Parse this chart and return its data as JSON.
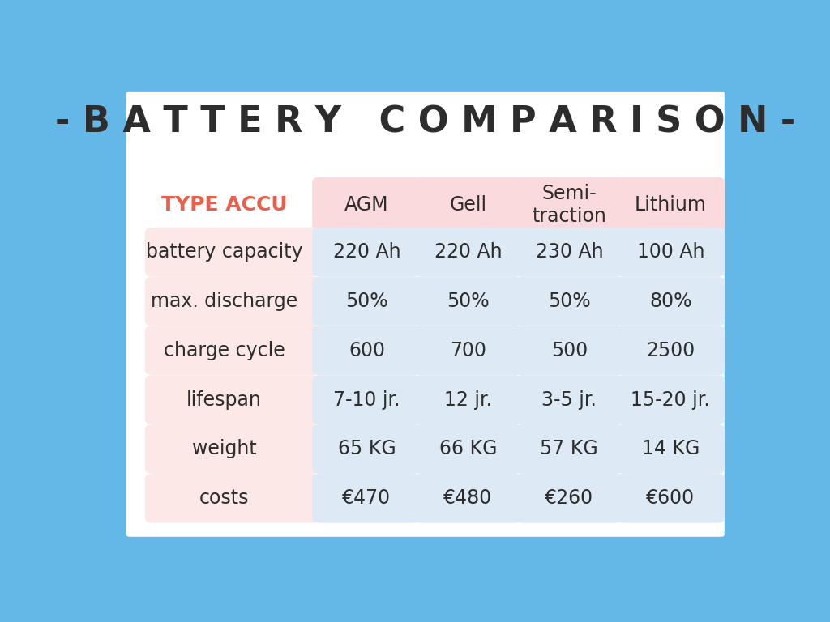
{
  "title": "- B A T T E R Y   C O M P A R I S O N -",
  "title_color": "#2d2d2d",
  "title_fontsize": 32,
  "background_outer": "#64b8e8",
  "background_inner": "#ffffff",
  "header_label": "TYPE ACCU",
  "header_label_color": "#e8604c",
  "header_label_fontsize": 18,
  "col_headers": [
    "AGM",
    "Gell",
    "Semi-\ntraction",
    "Lithium"
  ],
  "col_header_bg": "#fadadd",
  "col_header_text_color": "#2d2d2d",
  "col_header_fontsize": 17,
  "row_labels": [
    "battery capacity",
    "max. discharge",
    "charge cycle",
    "lifespan",
    "weight",
    "costs"
  ],
  "row_label_bg": "#fce8e6",
  "row_label_text_color": "#2d2d2d",
  "row_label_fontsize": 17,
  "data_cells": [
    [
      "220 Ah",
      "220 Ah",
      "230 Ah",
      "100 Ah"
    ],
    [
      "50%",
      "50%",
      "50%",
      "80%"
    ],
    [
      "600",
      "700",
      "500",
      "2500"
    ],
    [
      "7-10 jr.",
      "12 jr.",
      "3-5 jr.",
      "15-20 jr."
    ],
    [
      "65 KG",
      "66 KG",
      "57 KG",
      "14 KG"
    ],
    [
      "€470",
      "€480",
      "€260",
      "€600"
    ]
  ],
  "data_cell_bg": "#ddeaf5",
  "data_cell_text_color": "#2d2d2d",
  "data_cell_fontsize": 17
}
